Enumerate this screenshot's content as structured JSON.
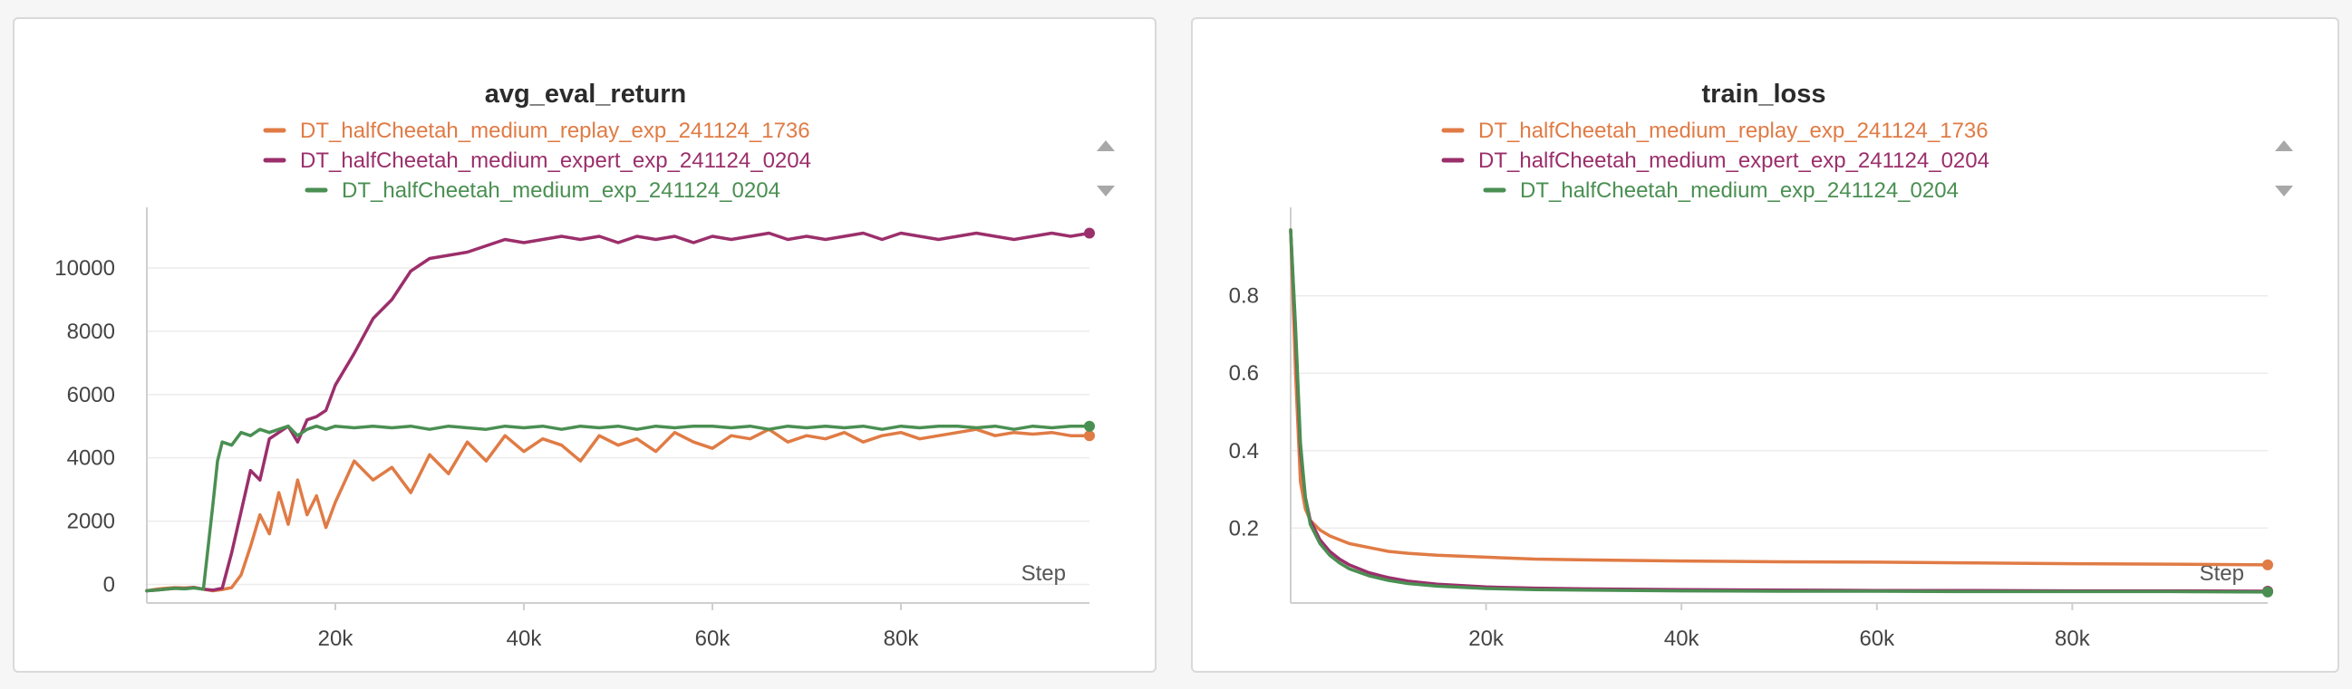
{
  "chart_data": [
    {
      "type": "line",
      "title": "avg_eval_return",
      "xlabel": "Step",
      "ylabel": "",
      "xlim": [
        0,
        100000
      ],
      "ylim": [
        -300,
        11200
      ],
      "xticks": [
        20000,
        40000,
        60000,
        80000
      ],
      "xtick_labels": [
        "20k",
        "40k",
        "60k",
        "80k"
      ],
      "yticks": [
        0,
        2000,
        4000,
        6000,
        8000,
        10000
      ],
      "ytick_labels": [
        "0",
        "2000",
        "4000",
        "6000",
        "8000",
        "10000"
      ],
      "grid": true,
      "legend_position": "top-center",
      "series": [
        {
          "name": "DT_halfCheetah_medium_replay_exp_241124_1736",
          "color": "#e07b45",
          "x": [
            0,
            1000,
            2000,
            3000,
            4000,
            5000,
            6000,
            7000,
            8000,
            9000,
            10000,
            11000,
            12000,
            13000,
            14000,
            15000,
            16000,
            17000,
            18000,
            19000,
            20000,
            22000,
            24000,
            26000,
            28000,
            30000,
            32000,
            34000,
            36000,
            38000,
            40000,
            42000,
            44000,
            46000,
            48000,
            50000,
            52000,
            54000,
            56000,
            58000,
            60000,
            62000,
            64000,
            66000,
            68000,
            70000,
            72000,
            74000,
            76000,
            78000,
            80000,
            82000,
            84000,
            86000,
            88000,
            90000,
            92000,
            94000,
            96000,
            98000,
            100000
          ],
          "y": [
            -200,
            -150,
            -120,
            -100,
            -110,
            -90,
            -150,
            -200,
            -160,
            -100,
            300,
            1200,
            2200,
            1600,
            2900,
            1900,
            3300,
            2200,
            2800,
            1800,
            2600,
            3900,
            3300,
            3700,
            2900,
            4100,
            3500,
            4500,
            3900,
            4700,
            4200,
            4600,
            4400,
            3900,
            4700,
            4400,
            4600,
            4200,
            4800,
            4500,
            4300,
            4700,
            4600,
            4900,
            4500,
            4700,
            4600,
            4800,
            4500,
            4700,
            4800,
            4600,
            4700,
            4800,
            4900,
            4700,
            4800,
            4750,
            4800,
            4700,
            4700
          ]
        },
        {
          "name": "DT_halfCheetah_medium_expert_exp_241124_0204",
          "color": "#9b2f6b",
          "x": [
            0,
            1000,
            2000,
            3000,
            4000,
            5000,
            6000,
            7000,
            8000,
            9000,
            10000,
            11000,
            12000,
            13000,
            14000,
            15000,
            16000,
            17000,
            18000,
            19000,
            20000,
            22000,
            24000,
            26000,
            28000,
            30000,
            32000,
            34000,
            36000,
            38000,
            40000,
            42000,
            44000,
            46000,
            48000,
            50000,
            52000,
            54000,
            56000,
            58000,
            60000,
            62000,
            64000,
            66000,
            68000,
            70000,
            72000,
            74000,
            76000,
            78000,
            80000,
            82000,
            84000,
            86000,
            88000,
            90000,
            92000,
            94000,
            96000,
            98000,
            100000
          ],
          "y": [
            -200,
            -180,
            -150,
            -120,
            -130,
            -100,
            -150,
            -180,
            -120,
            1000,
            2300,
            3600,
            3300,
            4600,
            4800,
            5000,
            4500,
            5200,
            5300,
            5500,
            6300,
            7300,
            8400,
            9000,
            9900,
            10300,
            10400,
            10500,
            10700,
            10900,
            10800,
            10900,
            11000,
            10900,
            11000,
            10800,
            11000,
            10900,
            11000,
            10800,
            11000,
            10900,
            11000,
            11100,
            10900,
            11000,
            10900,
            11000,
            11100,
            10900,
            11100,
            11000,
            10900,
            11000,
            11100,
            11000,
            10900,
            11000,
            11100,
            11000,
            11100
          ]
        },
        {
          "name": "DT_halfCheetah_medium_exp_241124_0204",
          "color": "#4a8f52",
          "x": [
            0,
            1000,
            2000,
            3000,
            4000,
            5000,
            6000,
            7000,
            7500,
            8000,
            9000,
            10000,
            11000,
            12000,
            13000,
            14000,
            15000,
            16000,
            17000,
            18000,
            19000,
            20000,
            22000,
            24000,
            26000,
            28000,
            30000,
            32000,
            34000,
            36000,
            38000,
            40000,
            42000,
            44000,
            46000,
            48000,
            50000,
            52000,
            54000,
            56000,
            58000,
            60000,
            62000,
            64000,
            66000,
            68000,
            70000,
            72000,
            74000,
            76000,
            78000,
            80000,
            82000,
            84000,
            86000,
            88000,
            90000,
            92000,
            94000,
            96000,
            98000,
            100000
          ],
          "y": [
            -200,
            -180,
            -150,
            -120,
            -140,
            -110,
            -150,
            2500,
            3900,
            4500,
            4400,
            4800,
            4700,
            4900,
            4800,
            4900,
            5000,
            4700,
            4900,
            5000,
            4900,
            5000,
            4950,
            5000,
            4950,
            5000,
            4900,
            5000,
            4950,
            4900,
            5000,
            4950,
            5000,
            4900,
            5000,
            4950,
            5000,
            4900,
            5000,
            4950,
            5000,
            5000,
            4950,
            5000,
            4900,
            5000,
            4950,
            5000,
            4950,
            5000,
            4900,
            5000,
            4950,
            5000,
            5000,
            4950,
            5000,
            4900,
            5000,
            4950,
            5000,
            5000
          ]
        }
      ]
    },
    {
      "type": "line",
      "title": "train_loss",
      "xlabel": "Step",
      "ylabel": "",
      "xlim": [
        0,
        100000
      ],
      "ylim": [
        0.03,
        0.97
      ],
      "xticks": [
        20000,
        40000,
        60000,
        80000
      ],
      "xtick_labels": [
        "20k",
        "40k",
        "60k",
        "80k"
      ],
      "yticks": [
        0.2,
        0.4,
        0.6,
        0.8
      ],
      "ytick_labels": [
        "0.2",
        "0.4",
        "0.6",
        "0.8"
      ],
      "grid": true,
      "legend_position": "top-center",
      "series": [
        {
          "name": "DT_halfCheetah_medium_replay_exp_241124_1736",
          "color": "#e07b45",
          "x": [
            0,
            500,
            1000,
            1500,
            2000,
            3000,
            4000,
            5000,
            6000,
            8000,
            10000,
            12000,
            15000,
            20000,
            25000,
            30000,
            40000,
            50000,
            60000,
            70000,
            80000,
            90000,
            100000
          ],
          "y": [
            0.97,
            0.6,
            0.32,
            0.25,
            0.22,
            0.195,
            0.18,
            0.17,
            0.16,
            0.15,
            0.14,
            0.135,
            0.13,
            0.125,
            0.12,
            0.118,
            0.115,
            0.113,
            0.112,
            0.11,
            0.108,
            0.107,
            0.105
          ]
        },
        {
          "name": "DT_halfCheetah_medium_expert_exp_241124_0204",
          "color": "#9b2f6b",
          "x": [
            0,
            500,
            1000,
            1500,
            2000,
            3000,
            4000,
            5000,
            6000,
            8000,
            10000,
            12000,
            15000,
            20000,
            25000,
            30000,
            40000,
            50000,
            60000,
            70000,
            80000,
            90000,
            100000
          ],
          "y": [
            0.97,
            0.7,
            0.4,
            0.28,
            0.22,
            0.17,
            0.14,
            0.12,
            0.105,
            0.085,
            0.072,
            0.063,
            0.055,
            0.048,
            0.045,
            0.043,
            0.041,
            0.04,
            0.039,
            0.039,
            0.038,
            0.038,
            0.037
          ]
        },
        {
          "name": "DT_halfCheetah_medium_exp_241124_0204",
          "color": "#4a8f52",
          "x": [
            0,
            500,
            1000,
            1500,
            2000,
            3000,
            4000,
            5000,
            6000,
            8000,
            10000,
            12000,
            15000,
            20000,
            25000,
            30000,
            40000,
            50000,
            60000,
            70000,
            80000,
            90000,
            100000
          ],
          "y": [
            0.97,
            0.72,
            0.42,
            0.28,
            0.21,
            0.16,
            0.13,
            0.11,
            0.095,
            0.077,
            0.065,
            0.057,
            0.05,
            0.044,
            0.041,
            0.04,
            0.038,
            0.037,
            0.037,
            0.036,
            0.036,
            0.036,
            0.035
          ]
        }
      ]
    }
  ]
}
